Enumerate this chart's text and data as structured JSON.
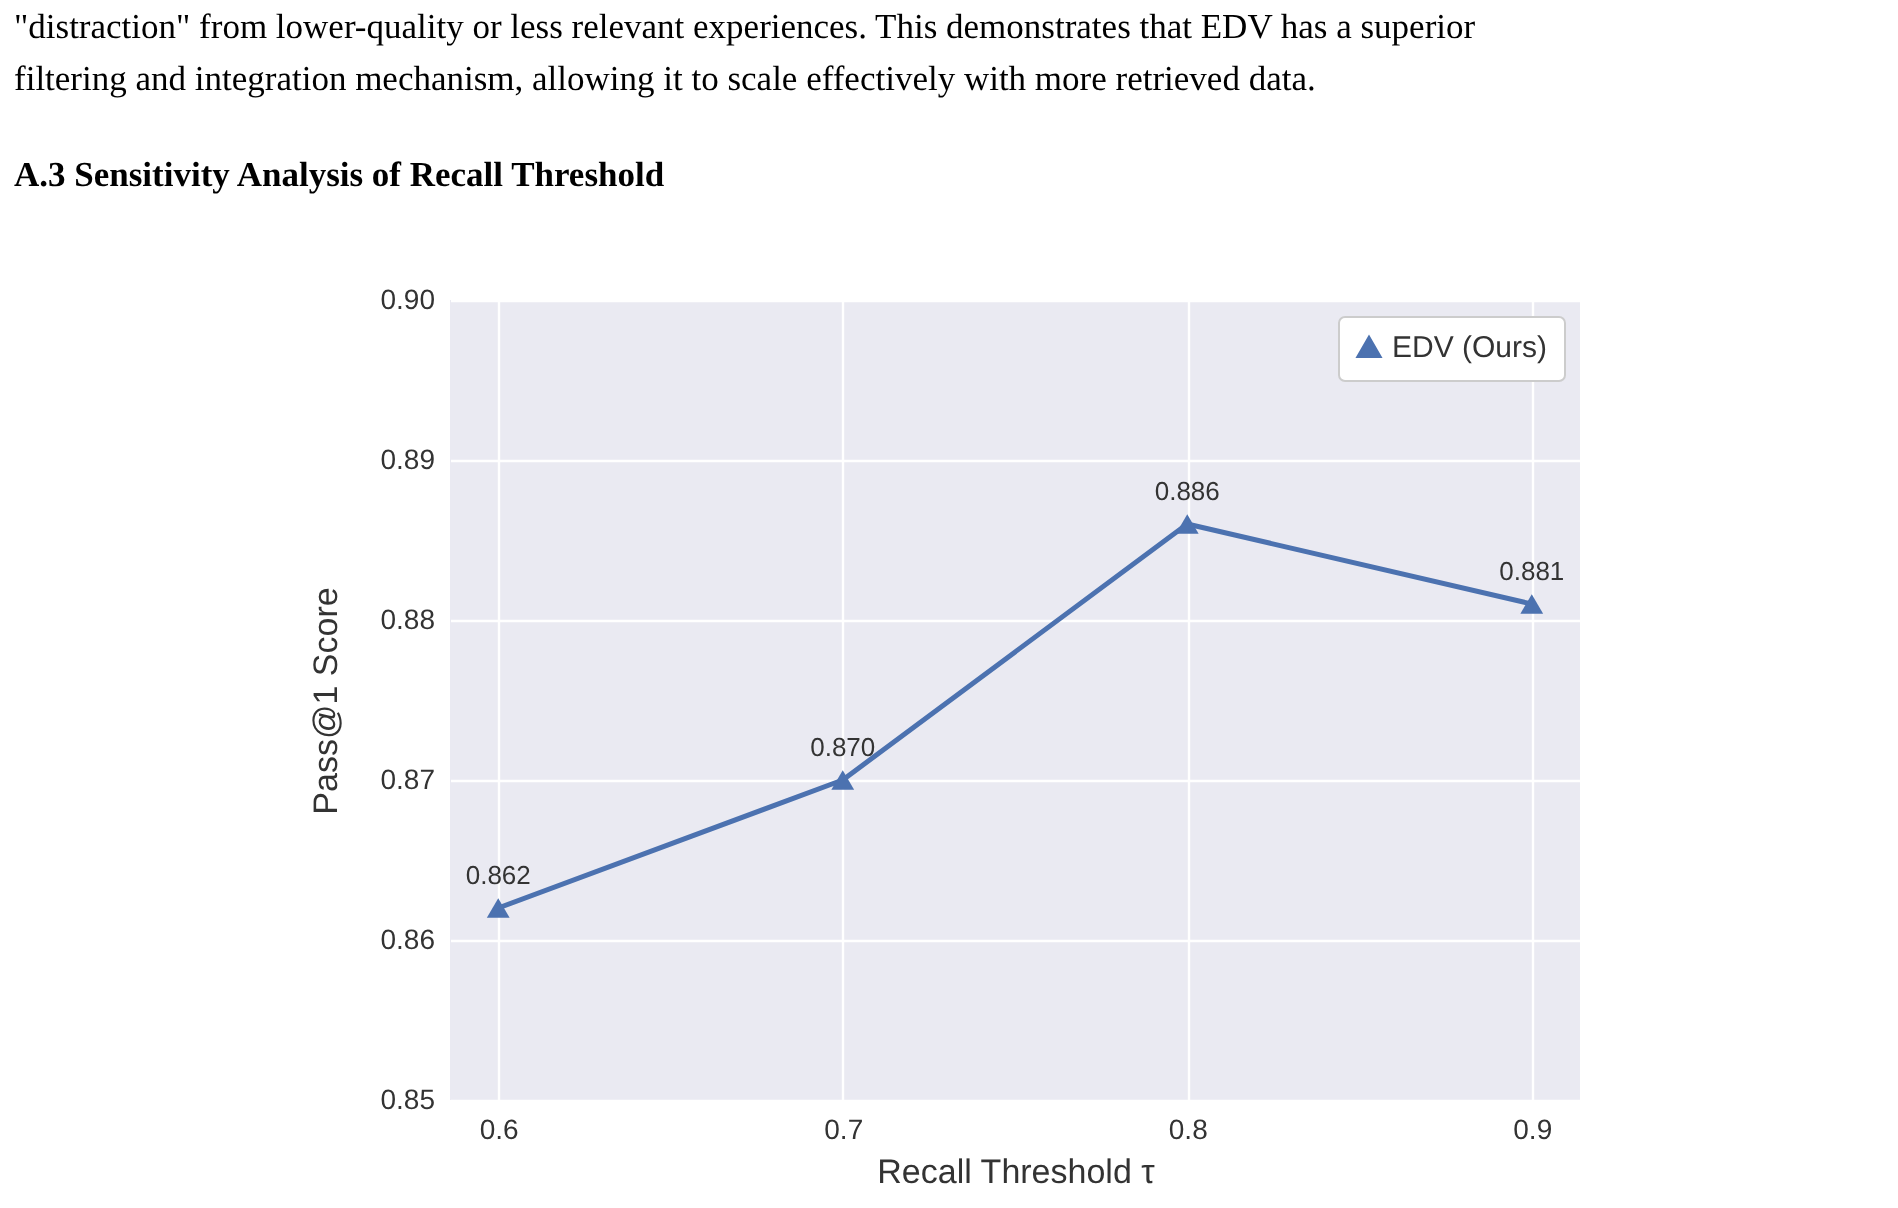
{
  "chart_data": {
    "type": "line",
    "title": "A.3 Sensitivity Analysis of Recall Threshold",
    "annotations": [
      "\"distraction\" from lower-quality or less relevant experiences. This demonstrates that EDV has a superior",
      "filtering and integration mechanism, allowing it to scale effectively with more retrieved data."
    ],
    "xlabel": "Recall Threshold τ",
    "ylabel": "Pass@1 Score",
    "x": [
      0.6,
      0.7,
      0.8,
      0.9
    ],
    "series": [
      {
        "name": "EDV (Ours)",
        "color": "#4c72b0",
        "values": [
          0.862,
          0.87,
          0.886,
          0.881
        ],
        "value_labels": [
          "0.862",
          "0.870",
          "0.886",
          "0.881"
        ]
      }
    ],
    "xlim": [
      0.586,
      0.914
    ],
    "ylim": [
      0.85,
      0.9
    ],
    "xticks": [
      0.6,
      0.7,
      0.8,
      0.9
    ],
    "yticks": [
      0.85,
      0.86,
      0.87,
      0.88,
      0.89,
      {
        "value": 0.9,
        "label": "0.90"
      }
    ],
    "grid": true,
    "legend": "top right",
    "marker": "triangle",
    "line_style": "solid"
  }
}
